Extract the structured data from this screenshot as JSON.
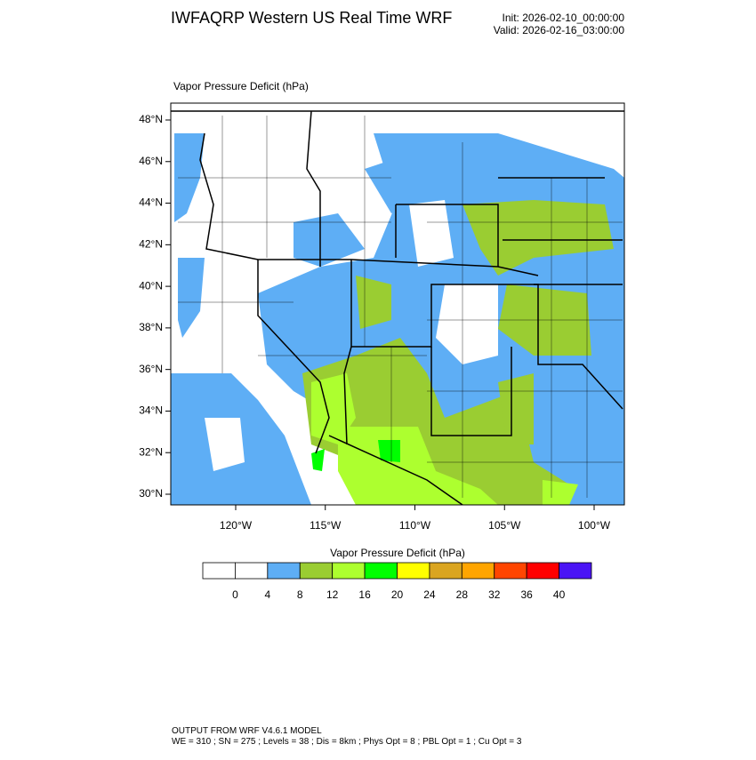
{
  "header": {
    "title": "IWFAQRP Western US Real Time WRF",
    "init": "Init: 2026-02-10_00:00:00",
    "valid": "Valid: 2026-02-16_03:00:00"
  },
  "map": {
    "title": "Vapor Pressure Deficit   (hPa)",
    "lat_labels": [
      "48°N",
      "46°N",
      "44°N",
      "42°N",
      "40°N",
      "38°N",
      "36°N",
      "34°N",
      "32°N",
      "30°N"
    ],
    "lon_labels": [
      "120°W",
      "115°W",
      "110°W",
      "105°W",
      "100°W"
    ]
  },
  "colorbar": {
    "title": "Vapor Pressure Deficit  (hPa)",
    "colors": [
      "#ffffff",
      "#ffffff",
      "#5eaef5",
      "#9acd32",
      "#adff2f",
      "#00ff00",
      "#ffff00",
      "#daa520",
      "#ffa500",
      "#ff4500",
      "#ff0000",
      "#4a14f5"
    ],
    "labels": [
      "0",
      "4",
      "8",
      "12",
      "16",
      "20",
      "24",
      "28",
      "32",
      "36",
      "40"
    ]
  },
  "footer": {
    "line1": "OUTPUT FROM WRF V4.6.1 MODEL",
    "line2": "WE = 310 ; SN = 275 ; Levels = 38 ; Dis = 8km ; Phys Opt = 8 ; PBL Opt = 1 ; Cu Opt = 3"
  }
}
